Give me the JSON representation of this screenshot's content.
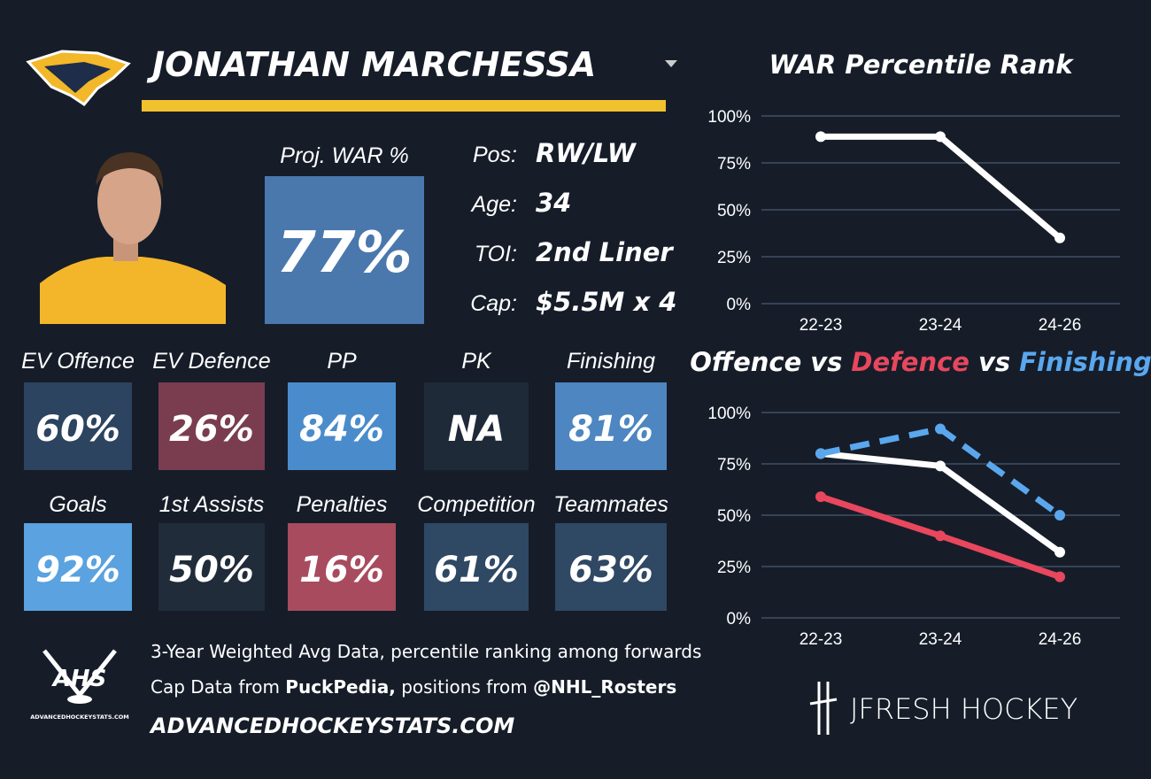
{
  "header": {
    "player_name": "JONATHAN MARCHESSA"
  },
  "summary": {
    "label": "Proj. WAR %",
    "value": "77%",
    "color": "#4a78ad"
  },
  "info": [
    {
      "label": "Pos:",
      "value": "RW/LW"
    },
    {
      "label": "Age:",
      "value": "34"
    },
    {
      "label": "TOI:",
      "value": "2nd Liner"
    },
    {
      "label": "Cap:",
      "value": "$5.5M x 4"
    }
  ],
  "tiles": [
    {
      "label": "EV Offence",
      "value": "60%",
      "color": "#2c4460"
    },
    {
      "label": "EV Defence",
      "value": "26%",
      "color": "#7a3d50"
    },
    {
      "label": "PP",
      "value": "84%",
      "color": "#4a8ccb"
    },
    {
      "label": "PK",
      "value": "NA",
      "color": "#1f2a38"
    },
    {
      "label": "Finishing",
      "value": "81%",
      "color": "#4d86c0"
    },
    {
      "label": "Goals",
      "value": "92%",
      "color": "#5aa2e0"
    },
    {
      "label": "1st Assists",
      "value": "50%",
      "color": "#212c3a"
    },
    {
      "label": "Penalties",
      "value": "16%",
      "color": "#a84b5e"
    },
    {
      "label": "Competition",
      "value": "61%",
      "color": "#2f4864"
    },
    {
      "label": "Teammates",
      "value": "63%",
      "color": "#2f4864"
    }
  ],
  "footer": {
    "note": "3-Year Weighted Avg Data, percentile ranking among forwards",
    "credits": [
      {
        "text": "Cap Data from ",
        "bold": false
      },
      {
        "text": "PuckPedia,",
        "bold": true
      },
      {
        "text": " positions from ",
        "bold": false
      },
      {
        "text": "@NHL_Rosters",
        "bold": true
      }
    ],
    "site": "ADVANCEDHOCKEYSTATS.COM"
  },
  "logos": {
    "ahs": "AHS",
    "ahs_site": "ADVANCEDHOCKEYSTATS.COM",
    "brand": "JFRESH HOCKEY"
  },
  "chart_data": [
    {
      "type": "line",
      "title": "WAR Percentile Rank",
      "categories": [
        "22-23",
        "23-24",
        "24-26"
      ],
      "series": [
        {
          "name": "WAR",
          "color": "#ffffff",
          "values": [
            89,
            89,
            35
          ]
        }
      ],
      "ylim": [
        0,
        100
      ],
      "yticks": [
        {
          "value": 0,
          "label": "0%"
        },
        {
          "value": 25,
          "label": "25%"
        },
        {
          "value": 50,
          "label": "50%"
        },
        {
          "value": 75,
          "label": "75%"
        },
        {
          "value": 100,
          "label": "100%"
        }
      ],
      "grid": true
    },
    {
      "type": "line",
      "title_connector": "vs",
      "categories": [
        "22-23",
        "23-24",
        "24-26"
      ],
      "series": [
        {
          "name": "Offence",
          "color": "#ffffff",
          "values": [
            80,
            74,
            32
          ]
        },
        {
          "name": "Defence",
          "color": "#e8475e",
          "values": [
            59,
            40,
            20
          ]
        },
        {
          "name": "Finishing",
          "color": "#5aa7ee",
          "values": [
            80,
            92,
            50
          ],
          "dashed": true
        }
      ],
      "ylim": [
        0,
        100
      ],
      "yticks": [
        {
          "value": 0,
          "label": "0%"
        },
        {
          "value": 25,
          "label": "25%"
        },
        {
          "value": 50,
          "label": "50%"
        },
        {
          "value": 75,
          "label": "75%"
        },
        {
          "value": 100,
          "label": "100%"
        }
      ],
      "grid": true
    }
  ]
}
